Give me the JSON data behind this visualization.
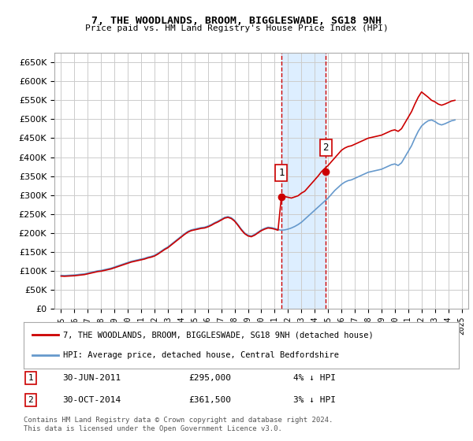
{
  "title": "7, THE WOODLANDS, BROOM, BIGGLESWADE, SG18 9NH",
  "subtitle": "Price paid vs. HM Land Registry's House Price Index (HPI)",
  "legend_line1": "7, THE WOODLANDS, BROOM, BIGGLESWADE, SG18 9NH (detached house)",
  "legend_line2": "HPI: Average price, detached house, Central Bedfordshire",
  "footnote": "Contains HM Land Registry data © Crown copyright and database right 2024.\nThis data is licensed under the Open Government Licence v3.0.",
  "annotation1_label": "1",
  "annotation1_date": "30-JUN-2011",
  "annotation1_price": "£295,000",
  "annotation1_hpi": "4% ↓ HPI",
  "annotation2_label": "2",
  "annotation2_date": "30-OCT-2014",
  "annotation2_price": "£361,500",
  "annotation2_hpi": "3% ↓ HPI",
  "marker1_year": 2011.5,
  "marker2_year": 2014.833,
  "marker1_value": 295000,
  "marker2_value": 361500,
  "ylim": [
    0,
    675000
  ],
  "xlim": [
    1994.5,
    2025.5
  ],
  "yticks": [
    0,
    50000,
    100000,
    150000,
    200000,
    250000,
    300000,
    350000,
    400000,
    450000,
    500000,
    550000,
    600000,
    650000
  ],
  "red_color": "#cc0000",
  "blue_color": "#6699cc",
  "shade_color": "#ddeeff",
  "grid_color": "#cccccc",
  "hpi_data_x": [
    1995,
    1995.25,
    1995.5,
    1995.75,
    1996,
    1996.25,
    1996.5,
    1996.75,
    1997,
    1997.25,
    1997.5,
    1997.75,
    1998,
    1998.25,
    1998.5,
    1998.75,
    1999,
    1999.25,
    1999.5,
    1999.75,
    2000,
    2000.25,
    2000.5,
    2000.75,
    2001,
    2001.25,
    2001.5,
    2001.75,
    2002,
    2002.25,
    2002.5,
    2002.75,
    2003,
    2003.25,
    2003.5,
    2003.75,
    2004,
    2004.25,
    2004.5,
    2004.75,
    2005,
    2005.25,
    2005.5,
    2005.75,
    2006,
    2006.25,
    2006.5,
    2006.75,
    2007,
    2007.25,
    2007.5,
    2007.75,
    2008,
    2008.25,
    2008.5,
    2008.75,
    2009,
    2009.25,
    2009.5,
    2009.75,
    2010,
    2010.25,
    2010.5,
    2010.75,
    2011,
    2011.25,
    2011.5,
    2011.75,
    2012,
    2012.25,
    2012.5,
    2012.75,
    2013,
    2013.25,
    2013.5,
    2013.75,
    2014,
    2014.25,
    2014.5,
    2014.75,
    2015,
    2015.25,
    2015.5,
    2015.75,
    2016,
    2016.25,
    2016.5,
    2016.75,
    2017,
    2017.25,
    2017.5,
    2017.75,
    2018,
    2018.25,
    2018.5,
    2018.75,
    2019,
    2019.25,
    2019.5,
    2019.75,
    2020,
    2020.25,
    2020.5,
    2020.75,
    2021,
    2021.25,
    2021.5,
    2021.75,
    2022,
    2022.25,
    2022.5,
    2022.75,
    2023,
    2023.25,
    2023.5,
    2023.75,
    2024,
    2024.25,
    2024.5
  ],
  "hpi_data_y": [
    88000,
    87500,
    88000,
    88500,
    89000,
    90000,
    91000,
    92000,
    94000,
    96000,
    98000,
    100000,
    101000,
    103000,
    105000,
    107000,
    110000,
    113000,
    116000,
    119000,
    122000,
    125000,
    127000,
    129000,
    131000,
    133000,
    136000,
    138000,
    141000,
    146000,
    152000,
    158000,
    163000,
    170000,
    177000,
    184000,
    191000,
    198000,
    204000,
    208000,
    210000,
    212000,
    214000,
    215000,
    218000,
    222000,
    227000,
    231000,
    236000,
    241000,
    243000,
    240000,
    233000,
    222000,
    210000,
    200000,
    194000,
    192000,
    196000,
    202000,
    208000,
    212000,
    215000,
    214000,
    212000,
    209000,
    207000,
    208000,
    210000,
    213000,
    217000,
    222000,
    228000,
    236000,
    244000,
    252000,
    260000,
    268000,
    276000,
    284000,
    292000,
    302000,
    312000,
    320000,
    328000,
    334000,
    338000,
    340000,
    344000,
    348000,
    352000,
    356000,
    360000,
    362000,
    364000,
    366000,
    368000,
    372000,
    376000,
    380000,
    382000,
    378000,
    385000,
    400000,
    415000,
    430000,
    450000,
    468000,
    482000,
    490000,
    496000,
    498000,
    494000,
    488000,
    485000,
    488000,
    492000,
    496000,
    498000
  ],
  "prop_data_x": [
    1995,
    1995.25,
    1995.5,
    1995.75,
    1996,
    1996.25,
    1996.5,
    1996.75,
    1997,
    1997.25,
    1997.5,
    1997.75,
    1998,
    1998.25,
    1998.5,
    1998.75,
    1999,
    1999.25,
    1999.5,
    1999.75,
    2000,
    2000.25,
    2000.5,
    2000.75,
    2001,
    2001.25,
    2001.5,
    2001.75,
    2002,
    2002.25,
    2002.5,
    2002.75,
    2003,
    2003.25,
    2003.5,
    2003.75,
    2004,
    2004.25,
    2004.5,
    2004.75,
    2005,
    2005.25,
    2005.5,
    2005.75,
    2006,
    2006.25,
    2006.5,
    2006.75,
    2007,
    2007.25,
    2007.5,
    2007.75,
    2008,
    2008.25,
    2008.5,
    2008.75,
    2009,
    2009.25,
    2009.5,
    2009.75,
    2010,
    2010.25,
    2010.5,
    2010.75,
    2011,
    2011.25,
    2011.5,
    2011.75,
    2012,
    2012.25,
    2012.5,
    2012.75,
    2013,
    2013.25,
    2013.5,
    2013.75,
    2014,
    2014.25,
    2014.5,
    2014.75,
    2015,
    2015.25,
    2015.5,
    2015.75,
    2016,
    2016.25,
    2016.5,
    2016.75,
    2017,
    2017.25,
    2017.5,
    2017.75,
    2018,
    2018.25,
    2018.5,
    2018.75,
    2019,
    2019.25,
    2019.5,
    2019.75,
    2020,
    2020.25,
    2020.5,
    2020.75,
    2021,
    2021.25,
    2021.5,
    2021.75,
    2022,
    2022.25,
    2022.5,
    2022.75,
    2023,
    2023.25,
    2023.5,
    2023.75,
    2024,
    2024.25,
    2024.5
  ],
  "prop_data_y": [
    86000,
    85500,
    86000,
    86500,
    87000,
    88000,
    89000,
    90000,
    92000,
    94000,
    96000,
    98000,
    99000,
    101000,
    103000,
    105000,
    108000,
    111000,
    114000,
    117000,
    120000,
    123000,
    125000,
    127000,
    129000,
    131000,
    134000,
    136000,
    139000,
    144000,
    150000,
    156000,
    161000,
    168000,
    175000,
    182000,
    189000,
    196000,
    202000,
    206000,
    208000,
    210000,
    212000,
    213000,
    216000,
    220000,
    225000,
    229000,
    234000,
    239000,
    241000,
    238000,
    231000,
    220000,
    208000,
    198000,
    192000,
    190000,
    194000,
    200000,
    206000,
    210000,
    213000,
    212000,
    210000,
    207000,
    295000,
    296000,
    294000,
    292000,
    295000,
    298000,
    305000,
    310000,
    320000,
    330000,
    340000,
    350000,
    361500,
    370000,
    378000,
    388000,
    398000,
    408000,
    418000,
    424000,
    428000,
    430000,
    434000,
    438000,
    442000,
    446000,
    450000,
    452000,
    454000,
    456000,
    458000,
    462000,
    466000,
    470000,
    472000,
    468000,
    475000,
    490000,
    505000,
    520000,
    540000,
    558000,
    572000,
    565000,
    558000,
    550000,
    546000,
    540000,
    537000,
    540000,
    544000,
    548000,
    550000
  ]
}
